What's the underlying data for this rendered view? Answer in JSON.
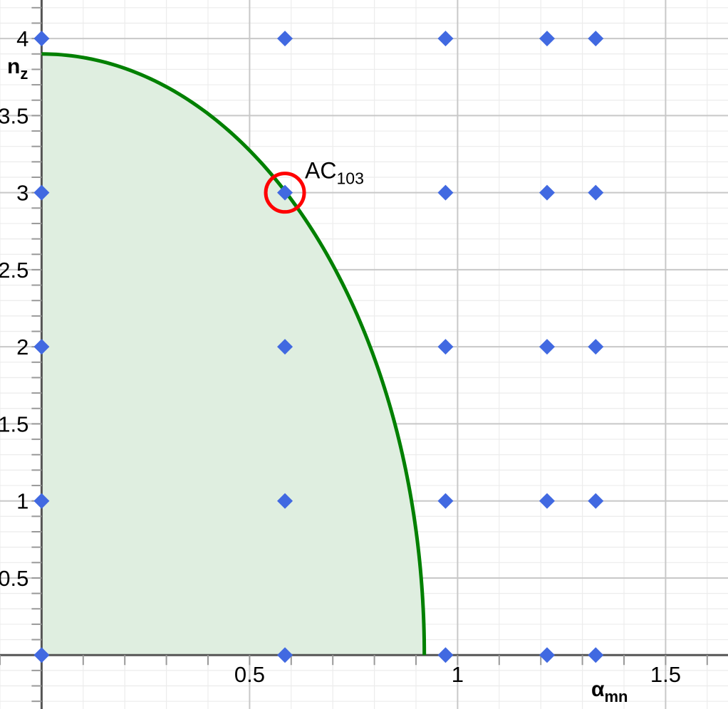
{
  "chart_data": {
    "type": "scatter",
    "xlabel": {
      "main": "α",
      "sub": "mn"
    },
    "ylabel": {
      "main": "n",
      "sub": "z"
    },
    "xlim": [
      -0.1,
      1.65
    ],
    "ylim": [
      -0.35,
      4.25
    ],
    "x_ticks": [
      {
        "value": 0.5,
        "label": "0.5"
      },
      {
        "value": 1,
        "label": "1"
      },
      {
        "value": 1.5,
        "label": "1.5"
      }
    ],
    "y_ticks": [
      {
        "value": 0.5,
        "label": "0.5"
      },
      {
        "value": 1,
        "label": "1"
      },
      {
        "value": 1.5,
        "label": "1.5"
      },
      {
        "value": 2,
        "label": "2"
      },
      {
        "value": 2.5,
        "label": "2.5"
      },
      {
        "value": 3,
        "label": "3"
      },
      {
        "value": 3.5,
        "label": "3.5"
      },
      {
        "value": 4,
        "label": "4"
      }
    ],
    "grid": true,
    "series": [
      {
        "kind": "points",
        "marker": "diamond",
        "color": "#4169e1",
        "x_values": [
          0,
          0.585,
          0.971,
          1.215,
          1.332
        ],
        "y_values": [
          0,
          1,
          2,
          3,
          4
        ]
      }
    ],
    "region": {
      "kind": "elliptical-quadrant",
      "x_intercept": 0.92,
      "y_intercept": 3.9,
      "line_color": "#008000",
      "fill_color": "#dfeee0"
    },
    "annotation": {
      "x": 0.585,
      "y": 3,
      "text": {
        "main": "AC",
        "sub": "103"
      },
      "circle_color": "#ff0000"
    }
  }
}
